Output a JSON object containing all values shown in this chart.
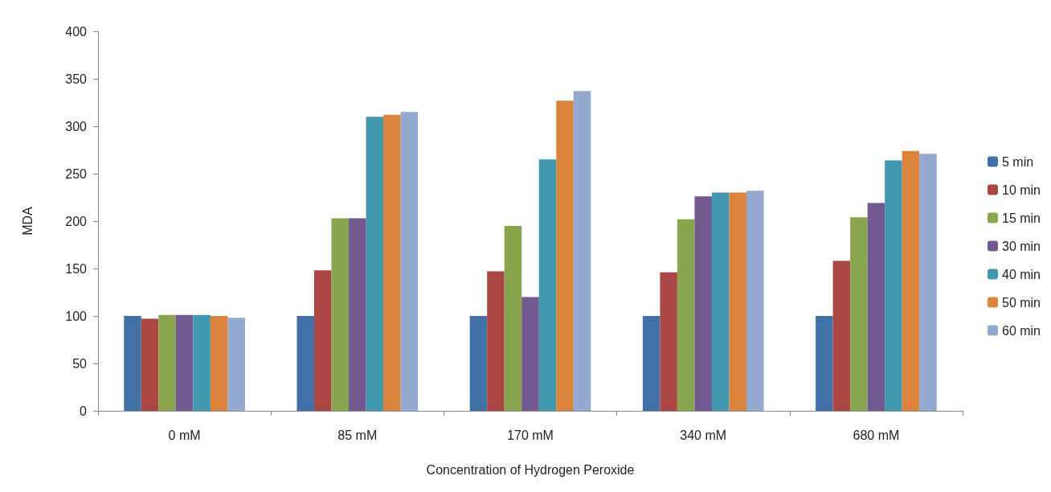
{
  "chart_data": {
    "type": "bar",
    "xlabel": "Concentration of Hydrogen Peroxide",
    "ylabel": "MDA",
    "categories": [
      "0 mM",
      "85 mM",
      "170 mM",
      "340 mM",
      "680 mM"
    ],
    "series": [
      {
        "name": "5 min",
        "color": "#4271a8",
        "values": [
          100,
          100,
          100,
          100,
          100
        ]
      },
      {
        "name": "10 min",
        "color": "#aa4744",
        "values": [
          97,
          148,
          147,
          146,
          158
        ]
      },
      {
        "name": "15 min",
        "color": "#89a54e",
        "values": [
          101,
          203,
          195,
          202,
          204
        ]
      },
      {
        "name": "30 min",
        "color": "#725990",
        "values": [
          101,
          203,
          120,
          226,
          219
        ]
      },
      {
        "name": "40 min",
        "color": "#4198af",
        "values": [
          101,
          310,
          265,
          230,
          264
        ]
      },
      {
        "name": "50 min",
        "color": "#db843d",
        "values": [
          100,
          312,
          327,
          230,
          274
        ]
      },
      {
        "name": "60 min",
        "color": "#93a9cf",
        "values": [
          98,
          315,
          337,
          232,
          271
        ]
      }
    ],
    "ylim": [
      0,
      400
    ],
    "yticks": [
      0,
      50,
      100,
      150,
      200,
      250,
      300,
      350,
      400
    ],
    "grid": false,
    "legend": "right"
  }
}
